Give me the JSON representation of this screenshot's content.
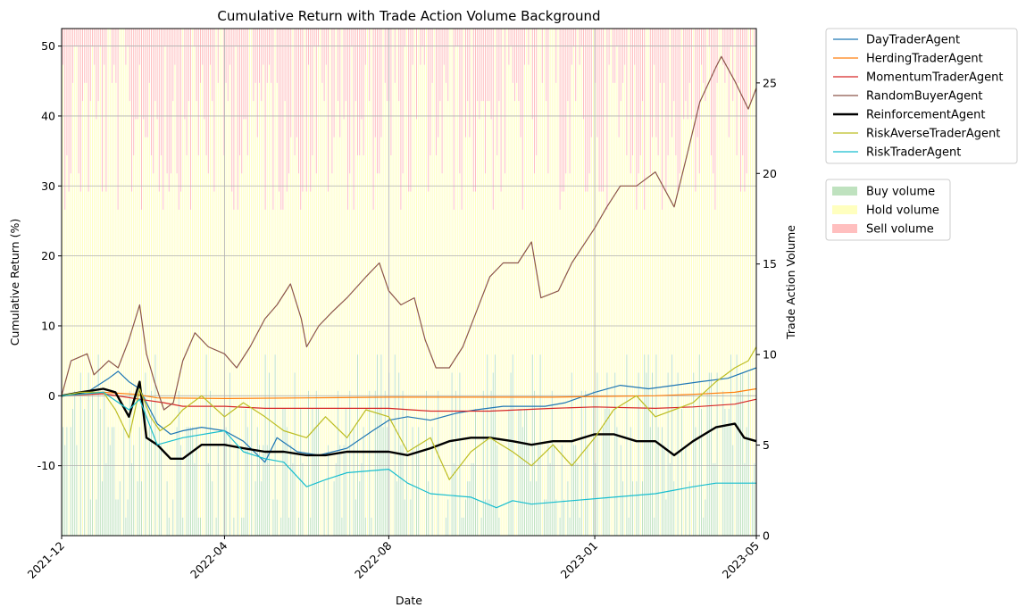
{
  "chart_data": {
    "type": "line",
    "title": "Cumulative Return with Trade Action Volume Background",
    "xlabel": "Date",
    "ylabel": "Cumulative Return (%)",
    "y2label": "Trade Action Volume",
    "x_ticks": [
      "2021-12",
      "2022-04",
      "2022-08",
      "2023-01",
      "2023-05"
    ],
    "x_tick_dates": [
      "2021-12-01",
      "2022-04-01",
      "2022-08-01",
      "2023-01-01",
      "2023-05-01"
    ],
    "xlim": [
      "2021-12-01",
      "2023-05-01"
    ],
    "ylim": [
      -20,
      52.5
    ],
    "y_ticks": [
      -10,
      0,
      10,
      20,
      30,
      40,
      50
    ],
    "y2lim": [
      0,
      28
    ],
    "y2_ticks": [
      0,
      5,
      10,
      15,
      20,
      25
    ],
    "grid": true,
    "legend_position": "outside-right",
    "series": [
      {
        "name": "DayTraderAgent",
        "color": "#1f77b4",
        "width": 1.2,
        "points": [
          [
            "2021-12-01",
            0
          ],
          [
            "2021-12-20",
            0.5
          ],
          [
            "2022-01-05",
            2.5
          ],
          [
            "2022-01-12",
            3.5
          ],
          [
            "2022-01-20",
            2.0
          ],
          [
            "2022-01-28",
            1.0
          ],
          [
            "2022-02-02",
            -1.0
          ],
          [
            "2022-02-10",
            -4.0
          ],
          [
            "2022-02-20",
            -5.5
          ],
          [
            "2022-03-01",
            -5.0
          ],
          [
            "2022-03-15",
            -4.5
          ],
          [
            "2022-04-01",
            -5.0
          ],
          [
            "2022-04-15",
            -6.5
          ],
          [
            "2022-05-01",
            -9.5
          ],
          [
            "2022-05-10",
            -6.0
          ],
          [
            "2022-05-25",
            -8.0
          ],
          [
            "2022-06-10",
            -8.5
          ],
          [
            "2022-07-01",
            -7.5
          ],
          [
            "2022-07-20",
            -5.0
          ],
          [
            "2022-08-01",
            -3.5
          ],
          [
            "2022-08-15",
            -3.0
          ],
          [
            "2022-09-01",
            -3.5
          ],
          [
            "2022-09-20",
            -2.5
          ],
          [
            "2022-10-05",
            -2.0
          ],
          [
            "2022-10-25",
            -1.5
          ],
          [
            "2022-11-10",
            -1.5
          ],
          [
            "2022-11-25",
            -1.5
          ],
          [
            "2022-12-10",
            -1.0
          ],
          [
            "2023-01-01",
            0.5
          ],
          [
            "2023-01-20",
            1.5
          ],
          [
            "2023-02-10",
            1.0
          ],
          [
            "2023-03-01",
            1.5
          ],
          [
            "2023-03-20",
            2.0
          ],
          [
            "2023-04-10",
            2.5
          ],
          [
            "2023-05-01",
            4.0
          ]
        ]
      },
      {
        "name": "HerdingTraderAgent",
        "color": "#ff7f0e",
        "width": 1.2,
        "points": [
          [
            "2021-12-01",
            0
          ],
          [
            "2022-01-01",
            0.5
          ],
          [
            "2022-01-25",
            0.2
          ],
          [
            "2022-02-10",
            -0.3
          ],
          [
            "2022-04-01",
            -0.4
          ],
          [
            "2022-06-01",
            -0.3
          ],
          [
            "2022-08-01",
            -0.2
          ],
          [
            "2022-10-01",
            -0.2
          ],
          [
            "2022-12-01",
            -0.2
          ],
          [
            "2023-01-01",
            -0.1
          ],
          [
            "2023-02-15",
            0.0
          ],
          [
            "2023-03-15",
            0.2
          ],
          [
            "2023-04-15",
            0.5
          ],
          [
            "2023-05-01",
            1.0
          ]
        ]
      },
      {
        "name": "MomentumTraderAgent",
        "color": "#d62728",
        "width": 1.2,
        "points": [
          [
            "2021-12-01",
            0
          ],
          [
            "2022-01-01",
            0.3
          ],
          [
            "2022-01-28",
            -0.5
          ],
          [
            "2022-02-15",
            -1.0
          ],
          [
            "2022-03-01",
            -1.5
          ],
          [
            "2022-04-01",
            -1.5
          ],
          [
            "2022-05-01",
            -1.8
          ],
          [
            "2022-06-15",
            -1.8
          ],
          [
            "2022-08-01",
            -1.8
          ],
          [
            "2022-09-01",
            -2.2
          ],
          [
            "2022-10-15",
            -2.2
          ],
          [
            "2022-12-01",
            -1.8
          ],
          [
            "2023-01-01",
            -1.6
          ],
          [
            "2023-02-15",
            -1.8
          ],
          [
            "2023-03-15",
            -1.6
          ],
          [
            "2023-04-15",
            -1.2
          ],
          [
            "2023-05-01",
            -0.5
          ]
        ]
      },
      {
        "name": "RandomBuyerAgent",
        "color": "#8c564b",
        "width": 1.2,
        "points": [
          [
            "2021-12-01",
            0
          ],
          [
            "2021-12-08",
            5.0
          ],
          [
            "2021-12-20",
            6.0
          ],
          [
            "2021-12-25",
            3.0
          ],
          [
            "2022-01-05",
            5.0
          ],
          [
            "2022-01-12",
            4.0
          ],
          [
            "2022-01-20",
            8.0
          ],
          [
            "2022-01-28",
            13.0
          ],
          [
            "2022-02-02",
            6.0
          ],
          [
            "2022-02-08",
            2.0
          ],
          [
            "2022-02-15",
            -2.0
          ],
          [
            "2022-02-22",
            -1.0
          ],
          [
            "2022-03-01",
            5.0
          ],
          [
            "2022-03-10",
            9.0
          ],
          [
            "2022-03-20",
            7.0
          ],
          [
            "2022-04-01",
            6.0
          ],
          [
            "2022-04-10",
            4.0
          ],
          [
            "2022-04-20",
            7.0
          ],
          [
            "2022-05-01",
            11.0
          ],
          [
            "2022-05-10",
            13.0
          ],
          [
            "2022-05-20",
            16.0
          ],
          [
            "2022-05-28",
            11.0
          ],
          [
            "2022-06-01",
            7.0
          ],
          [
            "2022-06-10",
            10.0
          ],
          [
            "2022-06-20",
            12.0
          ],
          [
            "2022-07-01",
            14.0
          ],
          [
            "2022-07-15",
            17.0
          ],
          [
            "2022-07-25",
            19.0
          ],
          [
            "2022-08-01",
            15.0
          ],
          [
            "2022-08-10",
            13.0
          ],
          [
            "2022-08-20",
            14.0
          ],
          [
            "2022-08-28",
            8.0
          ],
          [
            "2022-09-05",
            4.0
          ],
          [
            "2022-09-15",
            4.0
          ],
          [
            "2022-09-25",
            7.0
          ],
          [
            "2022-10-05",
            12.0
          ],
          [
            "2022-10-15",
            17.0
          ],
          [
            "2022-10-25",
            19.0
          ],
          [
            "2022-11-05",
            19.0
          ],
          [
            "2022-11-15",
            22.0
          ],
          [
            "2022-11-22",
            14.0
          ],
          [
            "2022-12-05",
            15.0
          ],
          [
            "2022-12-15",
            19.0
          ],
          [
            "2023-01-01",
            24.0
          ],
          [
            "2023-01-10",
            27.0
          ],
          [
            "2023-01-20",
            30.0
          ],
          [
            "2023-02-01",
            30.0
          ],
          [
            "2023-02-15",
            32.0
          ],
          [
            "2023-03-01",
            27.0
          ],
          [
            "2023-03-10",
            34.0
          ],
          [
            "2023-03-20",
            42.0
          ],
          [
            "2023-04-01",
            47.0
          ],
          [
            "2023-04-05",
            48.5
          ],
          [
            "2023-04-15",
            45.0
          ],
          [
            "2023-04-25",
            41.0
          ],
          [
            "2023-05-01",
            44.0
          ]
        ]
      },
      {
        "name": "ReinforcementAgent",
        "color": "#000000",
        "width": 2.4,
        "points": [
          [
            "2021-12-01",
            0
          ],
          [
            "2021-12-15",
            0.5
          ],
          [
            "2022-01-01",
            1.0
          ],
          [
            "2022-01-10",
            0.5
          ],
          [
            "2022-01-20",
            -3.0
          ],
          [
            "2022-01-28",
            2.0
          ],
          [
            "2022-02-02",
            -6.0
          ],
          [
            "2022-02-10",
            -7.0
          ],
          [
            "2022-02-20",
            -9.0
          ],
          [
            "2022-03-01",
            -9.0
          ],
          [
            "2022-03-15",
            -7.0
          ],
          [
            "2022-04-01",
            -7.0
          ],
          [
            "2022-04-15",
            -7.5
          ],
          [
            "2022-05-01",
            -8.0
          ],
          [
            "2022-05-15",
            -8.0
          ],
          [
            "2022-06-01",
            -8.5
          ],
          [
            "2022-06-15",
            -8.5
          ],
          [
            "2022-07-01",
            -8.0
          ],
          [
            "2022-07-15",
            -8.0
          ],
          [
            "2022-08-01",
            -8.0
          ],
          [
            "2022-08-15",
            -8.5
          ],
          [
            "2022-09-01",
            -7.5
          ],
          [
            "2022-09-15",
            -6.5
          ],
          [
            "2022-10-01",
            -6.0
          ],
          [
            "2022-10-15",
            -6.0
          ],
          [
            "2022-11-01",
            -6.5
          ],
          [
            "2022-11-15",
            -7.0
          ],
          [
            "2022-12-01",
            -6.5
          ],
          [
            "2022-12-15",
            -6.5
          ],
          [
            "2023-01-01",
            -5.5
          ],
          [
            "2023-01-15",
            -5.5
          ],
          [
            "2023-02-01",
            -6.5
          ],
          [
            "2023-02-15",
            -6.5
          ],
          [
            "2023-03-01",
            -8.5
          ],
          [
            "2023-03-15",
            -6.5
          ],
          [
            "2023-04-01",
            -4.5
          ],
          [
            "2023-04-15",
            -4.0
          ],
          [
            "2023-04-22",
            -6.0
          ],
          [
            "2023-05-01",
            -6.5
          ]
        ]
      },
      {
        "name": "RiskAverseTraderAgent",
        "color": "#bcbd22",
        "width": 1.2,
        "points": [
          [
            "2021-12-01",
            0
          ],
          [
            "2021-12-15",
            0.5
          ],
          [
            "2022-01-01",
            0.5
          ],
          [
            "2022-01-10",
            -2.0
          ],
          [
            "2022-01-20",
            -6.0
          ],
          [
            "2022-01-28",
            1.0
          ],
          [
            "2022-02-05",
            -3.0
          ],
          [
            "2022-02-12",
            -5.0
          ],
          [
            "2022-02-20",
            -4.0
          ],
          [
            "2022-03-01",
            -2.0
          ],
          [
            "2022-03-15",
            0.0
          ],
          [
            "2022-04-01",
            -3.0
          ],
          [
            "2022-04-15",
            -1.0
          ],
          [
            "2022-05-01",
            -3.0
          ],
          [
            "2022-05-15",
            -5.0
          ],
          [
            "2022-06-01",
            -6.0
          ],
          [
            "2022-06-15",
            -3.0
          ],
          [
            "2022-07-01",
            -6.0
          ],
          [
            "2022-07-15",
            -2.0
          ],
          [
            "2022-08-01",
            -3.0
          ],
          [
            "2022-08-15",
            -8.0
          ],
          [
            "2022-09-01",
            -6.0
          ],
          [
            "2022-09-15",
            -12.0
          ],
          [
            "2022-10-01",
            -8.0
          ],
          [
            "2022-10-15",
            -6.0
          ],
          [
            "2022-11-01",
            -8.0
          ],
          [
            "2022-11-15",
            -10.0
          ],
          [
            "2022-12-01",
            -7.0
          ],
          [
            "2022-12-15",
            -10.0
          ],
          [
            "2023-01-01",
            -6.0
          ],
          [
            "2023-01-15",
            -2.0
          ],
          [
            "2023-02-01",
            0.0
          ],
          [
            "2023-02-15",
            -3.0
          ],
          [
            "2023-03-01",
            -2.0
          ],
          [
            "2023-03-15",
            -1.0
          ],
          [
            "2023-04-01",
            2.0
          ],
          [
            "2023-04-15",
            4.0
          ],
          [
            "2023-04-25",
            5.0
          ],
          [
            "2023-05-01",
            7.0
          ]
        ]
      },
      {
        "name": "RiskTraderAgent",
        "color": "#17becf",
        "width": 1.2,
        "points": [
          [
            "2021-12-01",
            0
          ],
          [
            "2022-01-01",
            0.5
          ],
          [
            "2022-01-20",
            -2.0
          ],
          [
            "2022-01-28",
            -0.5
          ],
          [
            "2022-02-10",
            -7.0
          ],
          [
            "2022-03-01",
            -6.0
          ],
          [
            "2022-04-01",
            -5.0
          ],
          [
            "2022-04-15",
            -8.0
          ],
          [
            "2022-05-01",
            -9.0
          ],
          [
            "2022-05-15",
            -9.5
          ],
          [
            "2022-06-01",
            -13.0
          ],
          [
            "2022-06-15",
            -12.0
          ],
          [
            "2022-07-01",
            -11.0
          ],
          [
            "2022-08-01",
            -10.5
          ],
          [
            "2022-08-15",
            -12.5
          ],
          [
            "2022-09-01",
            -14.0
          ],
          [
            "2022-10-01",
            -14.5
          ],
          [
            "2022-10-20",
            -16.0
          ],
          [
            "2022-11-01",
            -15.0
          ],
          [
            "2022-11-15",
            -15.5
          ],
          [
            "2022-12-15",
            -15.0
          ],
          [
            "2023-01-15",
            -14.5
          ],
          [
            "2023-02-15",
            -14.0
          ],
          [
            "2023-03-15",
            -13.0
          ],
          [
            "2023-04-01",
            -12.5
          ],
          [
            "2023-05-01",
            -12.5
          ]
        ]
      }
    ],
    "background_volume": {
      "legend": [
        {
          "name": "Buy volume",
          "color": "#a9d8a9"
        },
        {
          "name": "Hold volume",
          "color": "#ffffaa"
        },
        {
          "name": "Sell volume",
          "color": "#ffaaaa"
        }
      ],
      "max_volume": 28
    }
  }
}
